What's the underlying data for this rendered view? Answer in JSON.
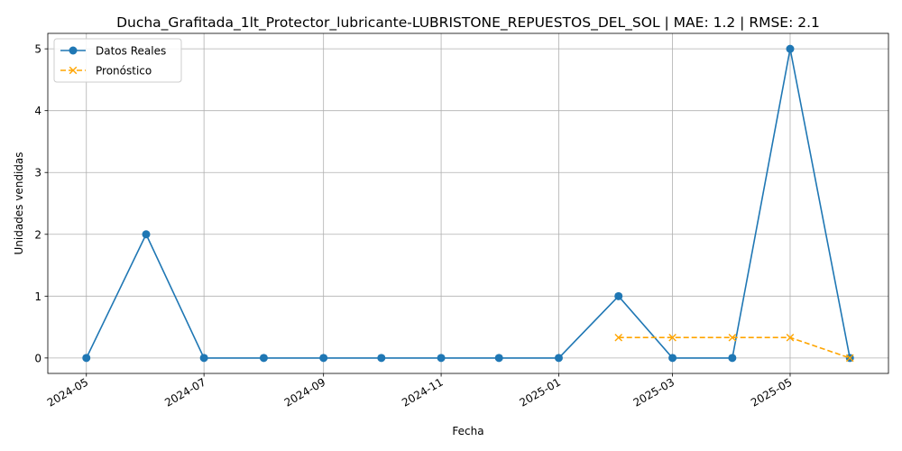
{
  "chart_data": {
    "type": "line",
    "title": "Ducha_Grafitada_1lt_Protector_lubricante-LUBRISTONE_REPUESTOS_DEL_SOL | MAE: 1.2 | RMSE: 2.1",
    "xlabel": "Fecha",
    "ylabel": "Unidades vendidas",
    "ylim": [
      -0.25,
      5.25
    ],
    "y_ticks": [
      0,
      1,
      2,
      3,
      4,
      5
    ],
    "x_ticks": [
      "2024-05",
      "2024-07",
      "2024-09",
      "2024-11",
      "2025-01",
      "2025-03",
      "2025-05"
    ],
    "grid": true,
    "legend_position": "top-left",
    "series": [
      {
        "name": "Datos Reales",
        "color": "#1f77b4",
        "style": "solid",
        "marker": "circle",
        "x": [
          "2024-05-01",
          "2024-06-01",
          "2024-07-01",
          "2024-08-01",
          "2024-09-01",
          "2024-10-01",
          "2024-11-01",
          "2024-12-01",
          "2025-01-01",
          "2025-02-01",
          "2025-03-01",
          "2025-04-01",
          "2025-05-01",
          "2025-06-01"
        ],
        "values": [
          0,
          2,
          0,
          0,
          0,
          0,
          0,
          0,
          0,
          1,
          0,
          0,
          5,
          0
        ]
      },
      {
        "name": "Pronóstico",
        "color": "#ffa500",
        "style": "dashed",
        "marker": "x",
        "x": [
          "2025-02-01",
          "2025-03-01",
          "2025-04-01",
          "2025-05-01",
          "2025-06-01"
        ],
        "values": [
          0.33,
          0.33,
          0.33,
          0.33,
          0
        ]
      }
    ]
  }
}
